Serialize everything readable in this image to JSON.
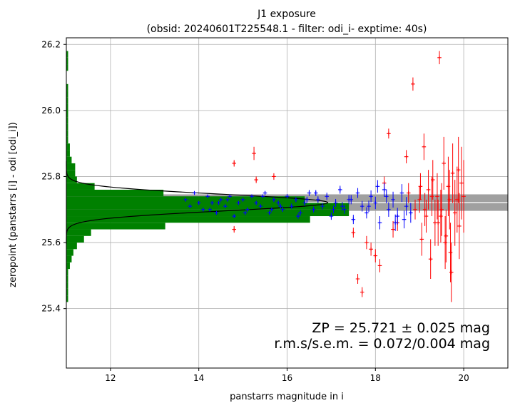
{
  "chart_data": {
    "type": "scatter",
    "title_line1": "J1 exposure",
    "title_line2": "(obsid: 20240601T225548.1 - filter: odi_i- exptime: 40s)",
    "xlabel": "panstarrs magnitude in i",
    "ylabel": "zeropoint (panstarrs [i] - odi [odi_i])",
    "xlim": [
      11.0,
      21.0
    ],
    "ylim": [
      25.22,
      26.22
    ],
    "x_ticks": [
      12,
      14,
      16,
      18,
      20
    ],
    "x_tick_labels": [
      "12",
      "14",
      "16",
      "18",
      "20"
    ],
    "y_ticks": [
      25.4,
      25.6,
      25.8,
      26.0,
      26.2
    ],
    "y_tick_labels": [
      "25.4",
      "25.6",
      "25.8",
      "26.0",
      "26.2"
    ],
    "grid": true,
    "zeropoint": 25.721,
    "zeropoint_band": [
      25.696,
      25.746
    ],
    "annotation_line1": "ZP = 25.721 ± 0.025 mag",
    "annotation_line2": "r.m.s/s.e.m. = 0.072/0.004 mag",
    "colors": {
      "accepted": "#0000ff",
      "rejected": "#ff0000",
      "histogram": "#008000",
      "band": "#a0a0a0",
      "zp_line": "#ffffff",
      "gaussian": "#000000"
    },
    "series_blue": {
      "x": [
        13.7,
        13.8,
        13.9,
        14.0,
        14.1,
        14.2,
        14.3,
        14.4,
        14.5,
        14.6,
        14.7,
        14.8,
        14.9,
        15.0,
        15.1,
        15.2,
        15.3,
        15.4,
        15.5,
        15.6,
        15.7,
        15.8,
        15.9,
        16.0,
        16.1,
        16.2,
        16.3,
        16.4,
        16.5,
        16.6,
        16.7,
        16.8,
        16.9,
        17.0,
        17.1,
        17.2,
        17.3,
        17.4,
        17.5,
        17.6,
        17.7,
        17.8,
        17.9,
        18.0,
        18.1,
        18.2,
        18.3,
        18.4,
        18.5,
        18.6,
        18.7,
        18.8,
        14.25,
        14.65,
        15.05,
        15.45,
        15.85,
        16.25,
        16.65,
        17.05,
        17.45,
        17.85,
        18.25,
        18.65,
        14.45,
        15.65,
        16.45,
        17.25,
        18.05,
        18.45
      ],
      "y": [
        25.73,
        25.71,
        25.75,
        25.72,
        25.7,
        25.74,
        25.72,
        25.69,
        25.73,
        25.71,
        25.74,
        25.68,
        25.72,
        25.73,
        25.7,
        25.74,
        25.72,
        25.71,
        25.75,
        25.69,
        25.73,
        25.72,
        25.7,
        25.74,
        25.71,
        25.73,
        25.69,
        25.72,
        25.75,
        25.7,
        25.73,
        25.71,
        25.74,
        25.68,
        25.72,
        25.76,
        25.7,
        25.73,
        25.67,
        25.75,
        25.71,
        25.69,
        25.74,
        25.72,
        25.66,
        25.76,
        25.7,
        25.73,
        25.68,
        25.75,
        25.71,
        25.69,
        25.7,
        25.73,
        25.69,
        25.74,
        25.71,
        25.68,
        25.75,
        25.7,
        25.73,
        25.71,
        25.74,
        25.67,
        25.72,
        25.7,
        25.73,
        25.71,
        25.77,
        25.66
      ],
      "yerr": [
        0.005,
        0.005,
        0.005,
        0.005,
        0.005,
        0.005,
        0.005,
        0.005,
        0.005,
        0.005,
        0.005,
        0.005,
        0.005,
        0.005,
        0.006,
        0.006,
        0.006,
        0.006,
        0.006,
        0.006,
        0.007,
        0.007,
        0.007,
        0.007,
        0.008,
        0.008,
        0.008,
        0.009,
        0.009,
        0.009,
        0.01,
        0.01,
        0.011,
        0.011,
        0.012,
        0.012,
        0.013,
        0.014,
        0.014,
        0.015,
        0.016,
        0.017,
        0.018,
        0.019,
        0.02,
        0.021,
        0.022,
        0.024,
        0.025,
        0.027,
        0.028,
        0.03,
        0.005,
        0.005,
        0.006,
        0.006,
        0.007,
        0.008,
        0.009,
        0.011,
        0.014,
        0.017,
        0.021,
        0.027,
        0.005,
        0.006,
        0.009,
        0.013,
        0.019,
        0.025
      ]
    },
    "series_red": {
      "x": [
        14.8,
        14.8,
        15.25,
        15.3,
        15.7,
        17.5,
        17.6,
        17.7,
        17.8,
        17.9,
        18.0,
        18.1,
        18.2,
        18.3,
        18.4,
        18.5,
        18.7,
        18.75,
        18.85,
        18.9,
        19.0,
        19.05,
        19.1,
        19.15,
        19.2,
        19.25,
        19.3,
        19.35,
        19.4,
        19.45,
        19.5,
        19.55,
        19.6,
        19.65,
        19.7,
        19.75,
        19.8,
        19.85,
        19.9,
        19.95,
        20.0,
        19.12,
        19.28,
        19.42,
        19.58,
        19.72,
        19.88,
        19.02,
        19.68,
        19.48
      ],
      "y": [
        25.84,
        25.64,
        25.87,
        25.79,
        25.8,
        25.63,
        25.49,
        25.45,
        25.6,
        25.58,
        25.56,
        25.53,
        25.78,
        25.93,
        25.64,
        25.66,
        25.86,
        25.75,
        26.08,
        25.7,
        25.73,
        25.61,
        25.89,
        25.68,
        25.76,
        25.55,
        25.79,
        25.66,
        25.74,
        26.16,
        25.7,
        25.84,
        25.62,
        25.77,
        25.57,
        25.81,
        25.69,
        25.73,
        25.65,
        25.78,
        25.74,
        25.7,
        25.74,
        25.66,
        25.6,
        25.51,
        25.82,
        25.77,
        25.73,
        25.68
      ],
      "yerr": [
        0.01,
        0.01,
        0.02,
        0.01,
        0.01,
        0.015,
        0.015,
        0.015,
        0.02,
        0.02,
        0.02,
        0.02,
        0.02,
        0.015,
        0.025,
        0.025,
        0.02,
        0.03,
        0.02,
        0.03,
        0.04,
        0.05,
        0.04,
        0.05,
        0.06,
        0.06,
        0.06,
        0.07,
        0.07,
        0.02,
        0.08,
        0.08,
        0.08,
        0.09,
        0.09,
        0.09,
        0.1,
        0.1,
        0.1,
        0.11,
        0.11,
        0.05,
        0.06,
        0.07,
        0.08,
        0.09,
        0.1,
        0.04,
        0.09,
        0.08
      ]
    },
    "histogram": {
      "bins": [
        25.43,
        25.45,
        25.47,
        25.49,
        25.51,
        25.53,
        25.55,
        25.57,
        25.59,
        25.61,
        25.63,
        25.65,
        25.67,
        25.69,
        25.71,
        25.73,
        25.75,
        25.77,
        25.79,
        25.81,
        25.83,
        25.85,
        25.87,
        25.89,
        25.91,
        25.93,
        25.95,
        25.97,
        25.99,
        26.01,
        26.03,
        26.05,
        26.07,
        26.09,
        26.11,
        26.13,
        26.15,
        26.17
      ],
      "counts": [
        1,
        1,
        1,
        1,
        1,
        2,
        3,
        4,
        6,
        10,
        14,
        56,
        138,
        160,
        160,
        135,
        55,
        16,
        6,
        5,
        5,
        3,
        2,
        2,
        1,
        1,
        1,
        1,
        1,
        1,
        1,
        1,
        1,
        0,
        0,
        1,
        1,
        1
      ],
      "count_axis_max": 250
    },
    "gaussian": {
      "mean": 25.721,
      "sigma": 0.025,
      "peak_count": 148
    }
  }
}
